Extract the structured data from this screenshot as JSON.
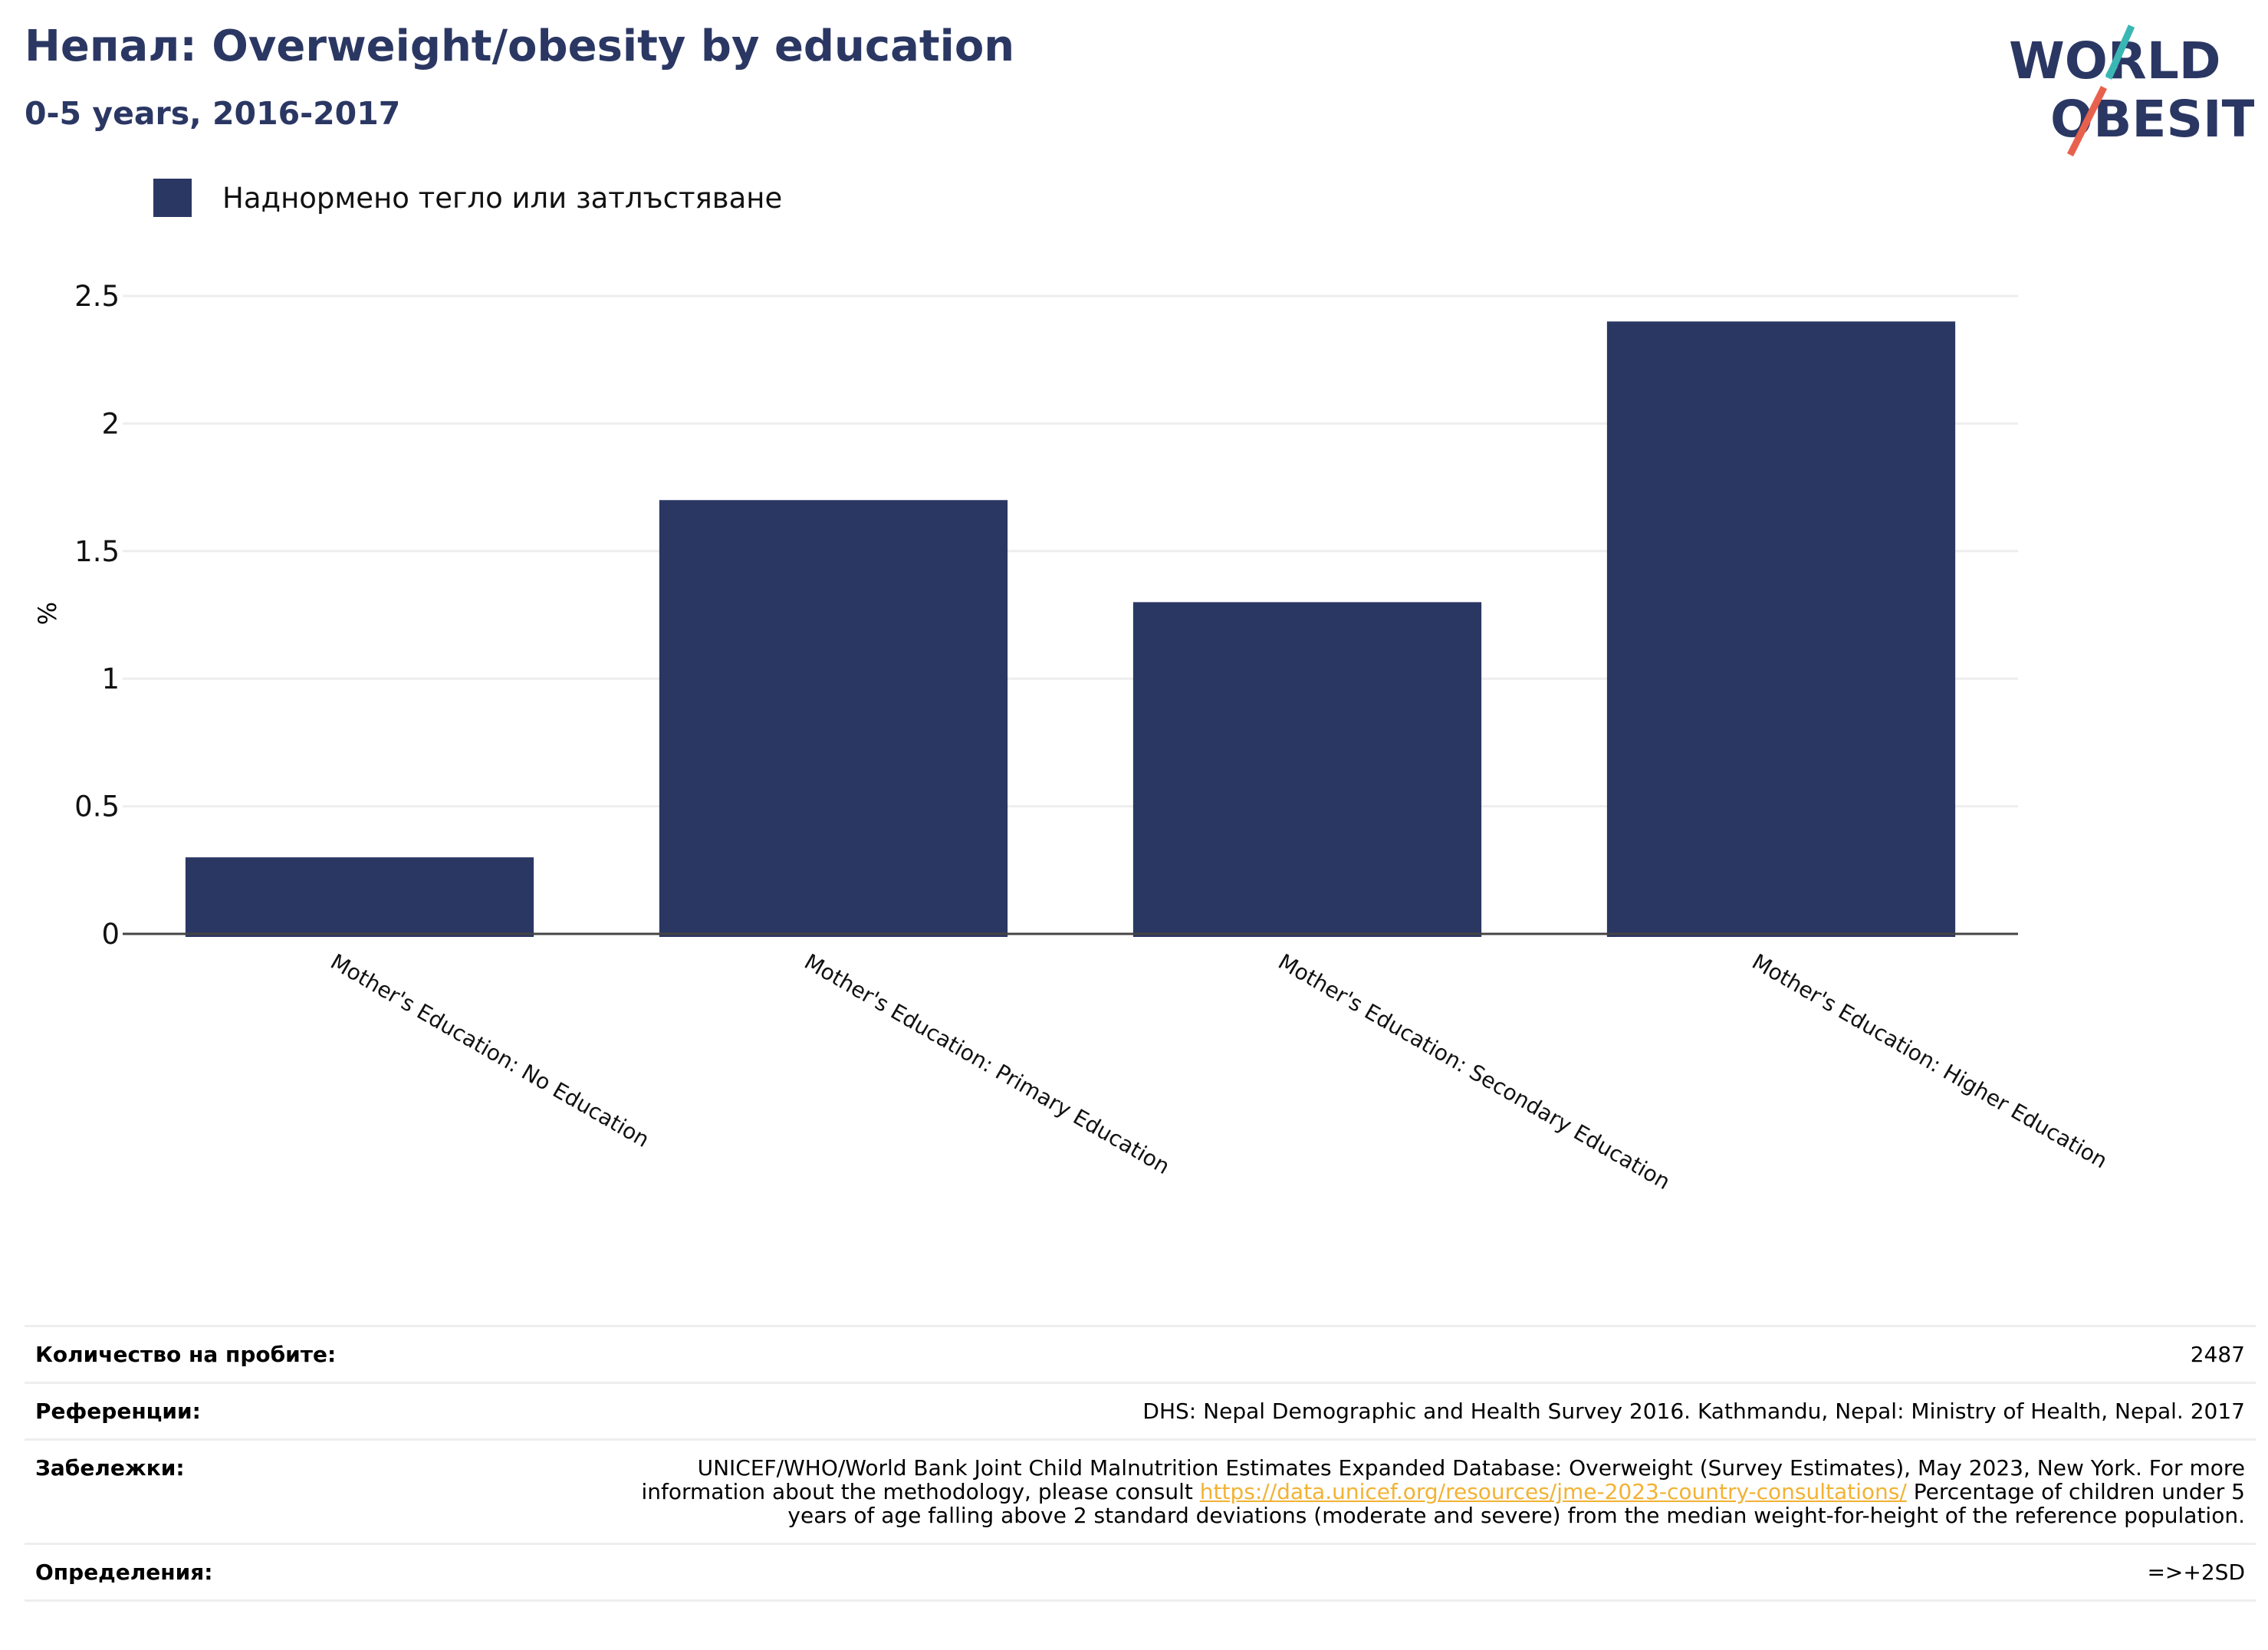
{
  "header": {
    "title": "Непал: Overweight/obesity by education",
    "subtitle": "0-5 years, 2016-2017"
  },
  "logo": {
    "line1": "WORLD",
    "line2": "OBESITY"
  },
  "colors": {
    "bar": "#2b3763",
    "title": "#2b3763",
    "link": "#f2b233",
    "grid": "#eeeeee",
    "logo_teal": "#3ab7b5",
    "logo_red": "#e8614d"
  },
  "chart_data": {
    "type": "bar",
    "categories": [
      "Mother's Education: No Education",
      "Mother's Education: Primary Education",
      "Mother's Education: Secondary Education",
      "Mother's Education: Higher Education"
    ],
    "series": [
      {
        "name": "Наднормено тегло или затлъстяване",
        "values": [
          0.3,
          1.7,
          1.3,
          2.4
        ]
      }
    ],
    "ylabel": "%",
    "xlabel": "",
    "ylim": [
      0,
      2.5
    ],
    "yticks": [
      "0",
      "0.5",
      "1",
      "1.5",
      "2",
      "2.5"
    ],
    "grid": true,
    "legend": "top-left"
  },
  "meta": {
    "sample_label": "Количество на пробите:",
    "sample_value": "2487",
    "references_label": "Референции:",
    "references_value": "DHS: Nepal Demographic and Health Survey 2016. Kathmandu, Nepal: Ministry of Health, Nepal. 2017",
    "notes_label": "Забележки:",
    "notes_before": "UNICEF/WHO/World Bank Joint Child Malnutrition Estimates Expanded Database: Overweight (Survey Estimates), May 2023, New York. For more information about the methodology, please consult ",
    "notes_link": "https://data.unicef.org/resources/jme-2023-country-consultations/",
    "notes_after": " Percentage of children under 5 years of age falling above 2 standard deviations (moderate and severe) from the median weight-for-height of the reference population.",
    "definitions_label": "Определения:",
    "definitions_value": "=>+2SD"
  }
}
